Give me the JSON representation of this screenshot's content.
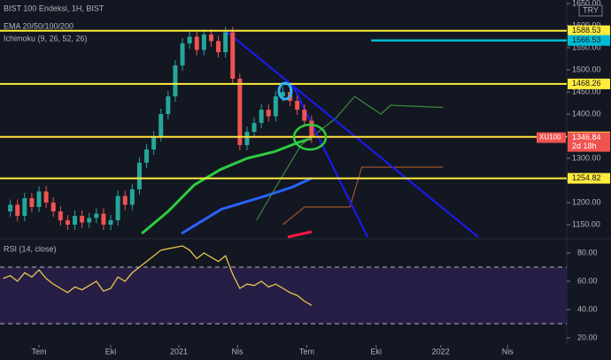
{
  "chart_data": [
    {
      "type": "candlestick",
      "title": "BIST 100 Endeksi, 1H, BIST",
      "indicators": [
        "EMA 20/50/100/200",
        "Ichimoku (9, 26, 52, 26)"
      ],
      "currency": "TRY",
      "x": [
        -1.5,
        -1.2,
        -0.9,
        -0.6,
        -0.3,
        0,
        0.3,
        0.6,
        0.9,
        1.2,
        1.5,
        1.8,
        2.1,
        2.4,
        2.7,
        3,
        3.3,
        3.6,
        3.9,
        4.2,
        4.5,
        4.8,
        5.1,
        5.4,
        5.7,
        6,
        6.3,
        6.6,
        6.9,
        7.2,
        7.5,
        7.8,
        8.1,
        8.4,
        8.7,
        9,
        9.3,
        9.6,
        9.9,
        10.2,
        10.5,
        10.8,
        11.1,
        11.4
      ],
      "close": [
        1180,
        1195,
        1170,
        1210,
        1190,
        1225,
        1200,
        1180,
        1160,
        1150,
        1170,
        1155,
        1165,
        1175,
        1150,
        1160,
        1215,
        1195,
        1230,
        1290,
        1320,
        1350,
        1400,
        1440,
        1510,
        1560,
        1575,
        1545,
        1580,
        1565,
        1540,
        1585,
        1480,
        1330,
        1360,
        1380,
        1410,
        1395,
        1440,
        1450,
        1430,
        1410,
        1385,
        1346.84
      ],
      "up_color": "#26a69a",
      "down_color": "#ef5350",
      "lines": [
        {
          "color": "#2ecc40",
          "x": [
            4.3,
            5.4,
            6.5,
            7.6,
            8.7,
            9.85,
            10.8,
            11.4
          ],
          "values": [
            1130,
            1180,
            1240,
            1275,
            1300,
            1315,
            1335,
            1345
          ]
        },
        {
          "color": "#2962ff",
          "x": [
            5.96,
            7.63,
            9.48,
            10.6,
            11.4
          ],
          "values": [
            1130,
            1185,
            1215,
            1235,
            1255
          ]
        },
        {
          "color": "#3d8b3d",
          "x": [
            9.1,
            9.85,
            10.96,
            12.4,
            13.2,
            14.3,
            14.7,
            16.9
          ],
          "values": [
            1160,
            1230,
            1330,
            1390,
            1440,
            1400,
            1420,
            1415
          ]
        },
        {
          "color": "#a0522d",
          "x": [
            10.2,
            11.1,
            13,
            13.5,
            16.9
          ],
          "values": [
            1150,
            1190,
            1190,
            1280,
            1280
          ]
        }
      ],
      "trendlines": [
        {
          "color": "#1a1aff",
          "x": [
            7.81,
            18.37
          ],
          "values": [
            1588,
            1122
          ]
        },
        {
          "color": "#1a1aff",
          "x": [
            10.59,
            13.74
          ],
          "values": [
            1468,
            1122
          ]
        }
      ],
      "levels": [
        1588.53,
        1468.26,
        1348.49,
        1254.82
      ],
      "level_color": "#ffeb3b",
      "cyan_level": {
        "value": 1566.53,
        "from": 13.9,
        "color": "#00bcd4"
      },
      "last": {
        "symbol": "XU100",
        "value": 1346.84,
        "countdown": "2d 18h",
        "color": "#ef5350"
      },
      "xlim": [
        -1.63,
        22.07
      ],
      "ylim": [
        1122,
        1658
      ],
      "yticks": [
        {
          "value": 1150,
          "label": "1150.00"
        },
        {
          "value": 1200,
          "label": "1200.00"
        },
        {
          "value": 1250,
          "label": "1250.00"
        },
        {
          "value": 1300,
          "label": "1300.00"
        },
        {
          "value": 1350,
          "label": "1350.00"
        },
        {
          "value": 1400,
          "label": "1400.00"
        },
        {
          "value": 1450,
          "label": "1450.00"
        },
        {
          "value": 1500,
          "label": "1500.00"
        },
        {
          "value": 1550,
          "label": "1550.00"
        },
        {
          "value": 1600,
          "label": "1600.00"
        },
        {
          "value": 1650,
          "label": "1650.00"
        }
      ]
    },
    {
      "type": "line",
      "title": "RSI (14, close)",
      "color": "#e6c84a",
      "x": [
        -1.5,
        -1.2,
        -0.9,
        -0.6,
        -0.3,
        0,
        0.3,
        0.6,
        0.9,
        1.2,
        1.5,
        1.8,
        2.1,
        2.4,
        2.7,
        3,
        3.3,
        3.6,
        3.9,
        4.2,
        4.5,
        4.8,
        5.1,
        5.4,
        5.7,
        6,
        6.3,
        6.6,
        6.9,
        7.2,
        7.5,
        7.8,
        8.1,
        8.4,
        8.7,
        9,
        9.3,
        9.6,
        9.9,
        10.2,
        10.5,
        10.8,
        11.1,
        11.4
      ],
      "values": [
        62,
        64,
        60,
        66,
        63,
        68,
        62,
        58,
        55,
        52,
        56,
        54,
        57,
        60,
        53,
        55,
        63,
        60,
        66,
        70,
        74,
        78,
        82,
        83,
        84,
        85,
        82,
        76,
        80,
        77,
        74,
        78,
        65,
        55,
        58,
        57,
        60,
        56,
        58,
        55,
        52,
        50,
        46,
        43
      ],
      "bands": [
        70,
        30
      ],
      "xlim": [
        -1.63,
        22.07
      ],
      "ylim": [
        15,
        88.75
      ],
      "yticks": [
        {
          "value": 20,
          "label": "20.00"
        },
        {
          "value": 40,
          "label": "40.00"
        },
        {
          "value": 60,
          "label": "60.00"
        },
        {
          "value": 80,
          "label": "80.00"
        }
      ],
      "xticks": [
        {
          "value": 0,
          "label": "Tem"
        },
        {
          "value": 3,
          "label": "Eki"
        },
        {
          "value": 5.85,
          "label": "2021"
        },
        {
          "value": 8.3,
          "label": "Nis"
        },
        {
          "value": 11.2,
          "label": "Tem"
        },
        {
          "value": 14.1,
          "label": "Eki"
        },
        {
          "value": 16.8,
          "label": "2022"
        },
        {
          "value": 19.6,
          "label": "Nis"
        }
      ]
    }
  ]
}
